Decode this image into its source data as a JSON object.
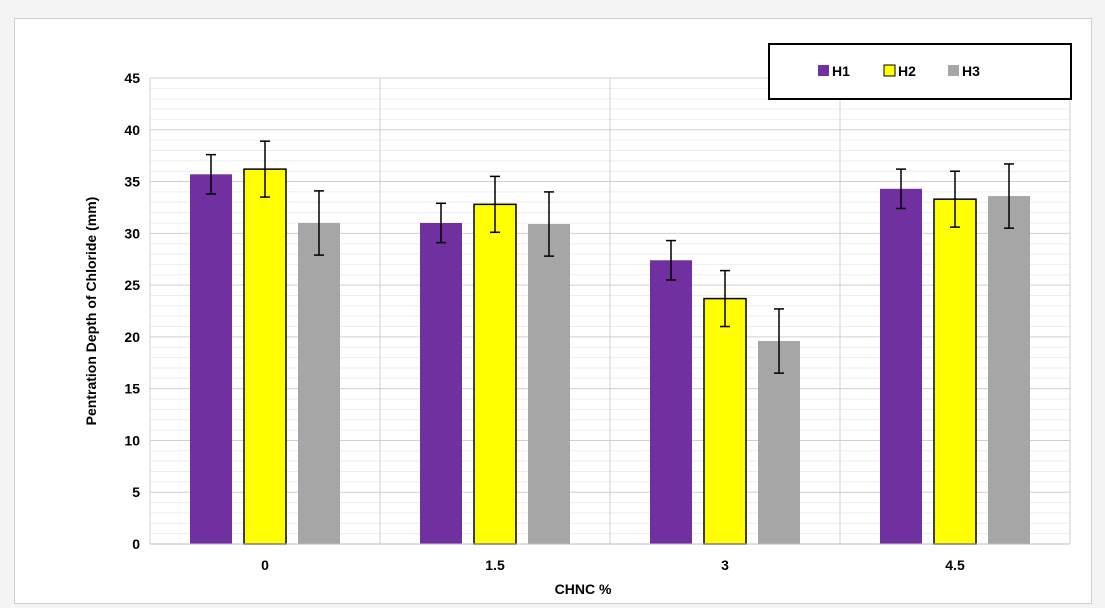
{
  "chart_data": {
    "type": "bar",
    "title": "",
    "xlabel": "CHNC %",
    "ylabel": "Pentration Depth of Chloride (mm)",
    "categories": [
      "0",
      "1.5",
      "3",
      "4.5"
    ],
    "ylim": [
      0,
      45
    ],
    "yticks": [
      "0",
      "5",
      "10",
      "15",
      "20",
      "25",
      "30",
      "35",
      "40",
      "45"
    ],
    "grid": true,
    "legend_position": "top-right",
    "series": [
      {
        "name": "H1",
        "color": "#7030a0",
        "stroke": "none",
        "values": [
          35.7,
          31.0,
          27.4,
          34.3
        ],
        "errors": [
          1.9,
          1.9,
          1.9,
          1.9
        ]
      },
      {
        "name": "H2",
        "color": "#ffff00",
        "stroke": "#000000",
        "values": [
          36.2,
          32.8,
          23.7,
          33.3
        ],
        "errors": [
          2.7,
          2.7,
          2.7,
          2.7
        ]
      },
      {
        "name": "H3",
        "color": "#a6a6a6",
        "stroke": "none",
        "values": [
          31.0,
          30.9,
          19.6,
          33.6
        ],
        "errors": [
          3.1,
          3.1,
          3.1,
          3.1
        ]
      }
    ]
  }
}
